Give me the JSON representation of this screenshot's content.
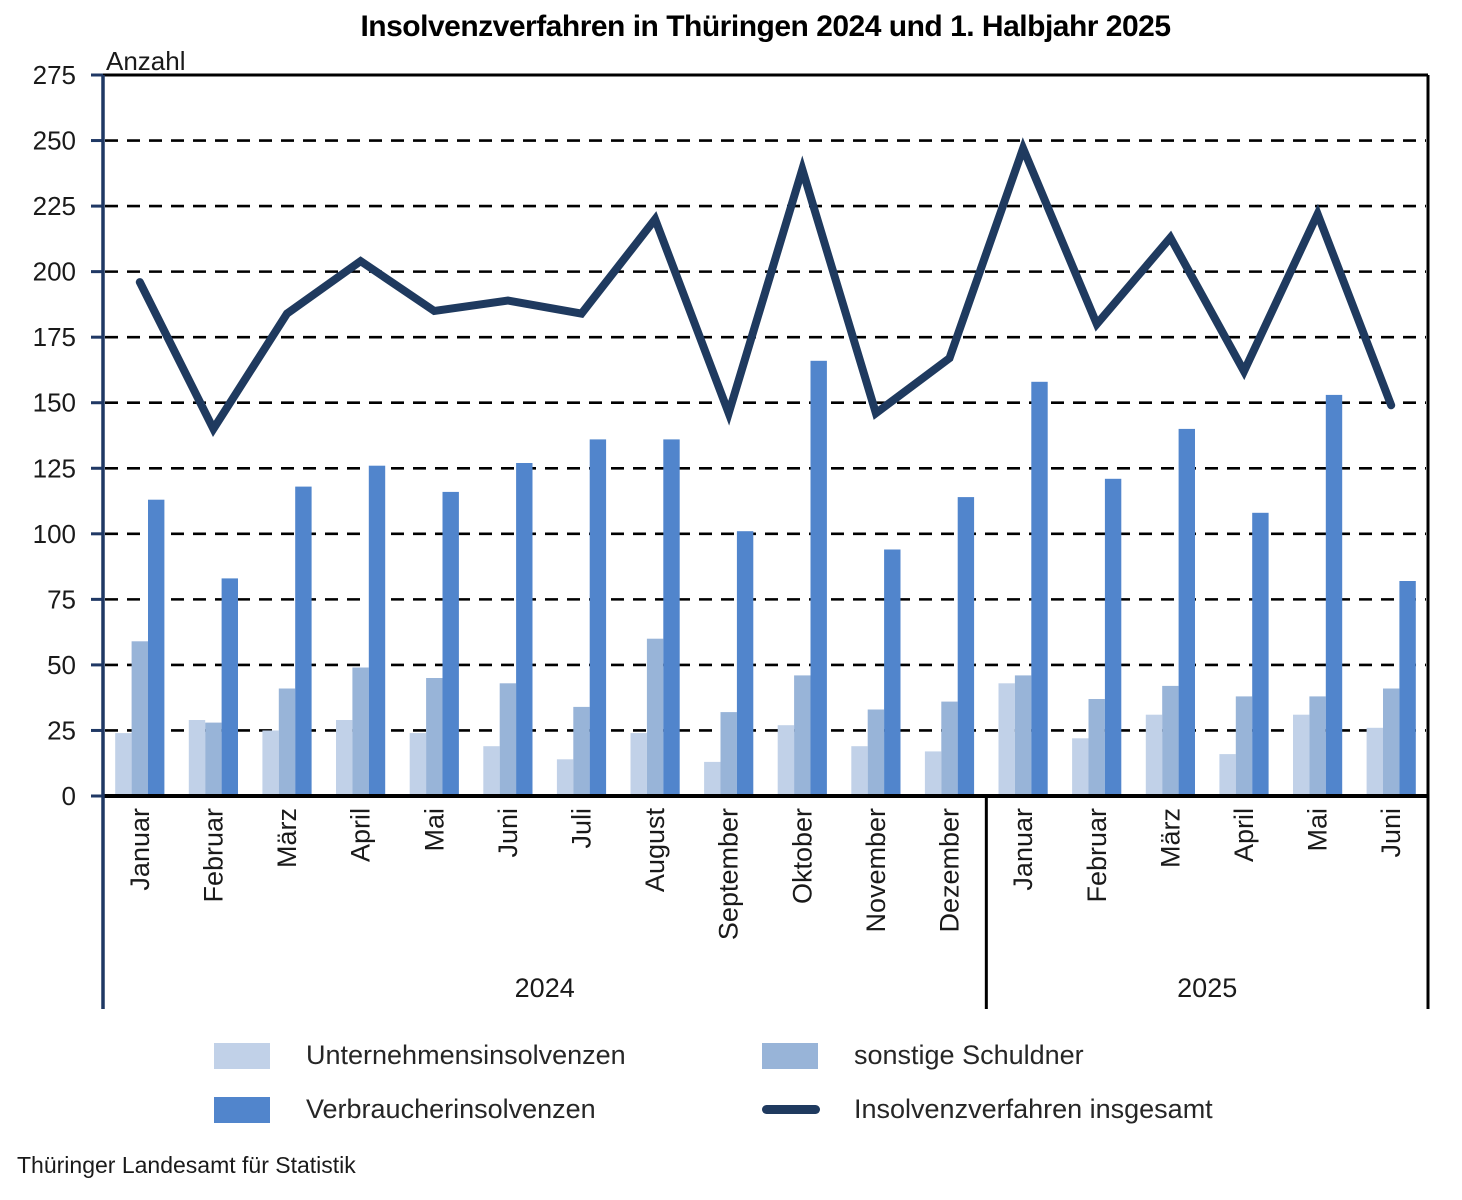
{
  "title": "Insolvenzverfahren in Thüringen 2024 und 1. Halbjahr 2025",
  "y_axis_label": "Anzahl",
  "source": "Thüringer Landesamt für Statistik",
  "colors": {
    "axis": "#1f3864",
    "frame": "#000000",
    "grid": "#000000",
    "text": "#1a1a1a"
  },
  "chart_data": {
    "type": "bar",
    "title": "Insolvenzverfahren in Thüringen 2024 und 1. Halbjahr 2025",
    "ylabel": "Anzahl",
    "ylim": [
      0,
      275
    ],
    "ytick_step": 25,
    "grid": "horizontal-dashed",
    "legend_position": "bottom",
    "categories": [
      "Januar",
      "Februar",
      "März",
      "April",
      "Mai",
      "Juni",
      "Juli",
      "August",
      "September",
      "Oktober",
      "November",
      "Dezember",
      "Januar",
      "Februar",
      "März",
      "April",
      "Mai",
      "Juni"
    ],
    "year_groups": [
      {
        "label": "2024",
        "span": 12
      },
      {
        "label": "2025",
        "span": 6
      }
    ],
    "series": [
      {
        "name": "Unternehmensinsolvenzen",
        "kind": "bar",
        "color": "#c1d1e8",
        "values": [
          24,
          29,
          25,
          29,
          24,
          19,
          14,
          24,
          13,
          27,
          19,
          17,
          43,
          22,
          31,
          16,
          31,
          26
        ]
      },
      {
        "name": "sonstige Schuldner",
        "kind": "bar",
        "color": "#98b4d8",
        "values": [
          59,
          28,
          41,
          49,
          45,
          43,
          34,
          60,
          32,
          46,
          33,
          36,
          46,
          37,
          42,
          38,
          38,
          41
        ]
      },
      {
        "name": "Verbraucherinsolvenzen",
        "kind": "bar",
        "color": "#5185cc",
        "values": [
          113,
          83,
          118,
          126,
          116,
          127,
          136,
          136,
          101,
          166,
          94,
          114,
          158,
          121,
          140,
          108,
          153,
          82
        ]
      },
      {
        "name": "Insolvenzverfahren insgesamt",
        "kind": "line",
        "color": "#1f3a5f",
        "values": [
          196,
          140,
          184,
          204,
          185,
          189,
          184,
          220,
          146,
          239,
          146,
          167,
          247,
          180,
          213,
          162,
          222,
          149
        ]
      }
    ]
  }
}
